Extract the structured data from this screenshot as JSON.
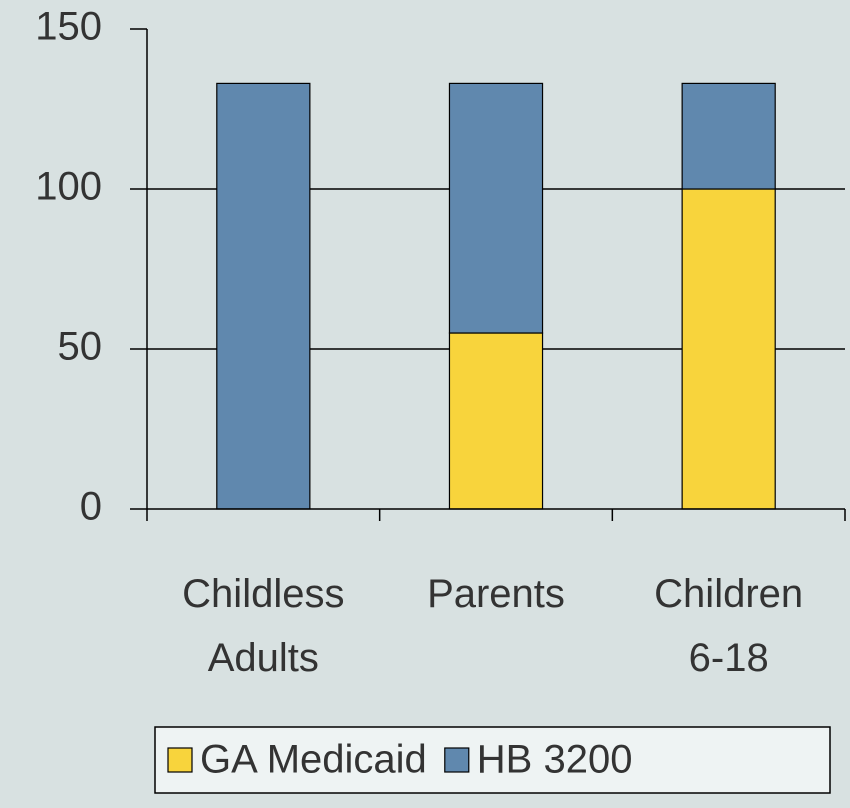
{
  "chart_data": {
    "type": "stacked_bar",
    "categories": [
      "Childless Adults",
      "Parents",
      "Children 6-18"
    ],
    "series": [
      {
        "name": "GA Medicaid",
        "color": "#f8d43c",
        "values": [
          0,
          55,
          100
        ]
      },
      {
        "name": "HB 3200",
        "color": "#6088ae",
        "values": [
          133,
          78,
          33
        ]
      }
    ],
    "ylim": [
      0,
      150
    ],
    "yticks": [
      0,
      50,
      100,
      150
    ],
    "grid": true,
    "legend": "bottom"
  }
}
